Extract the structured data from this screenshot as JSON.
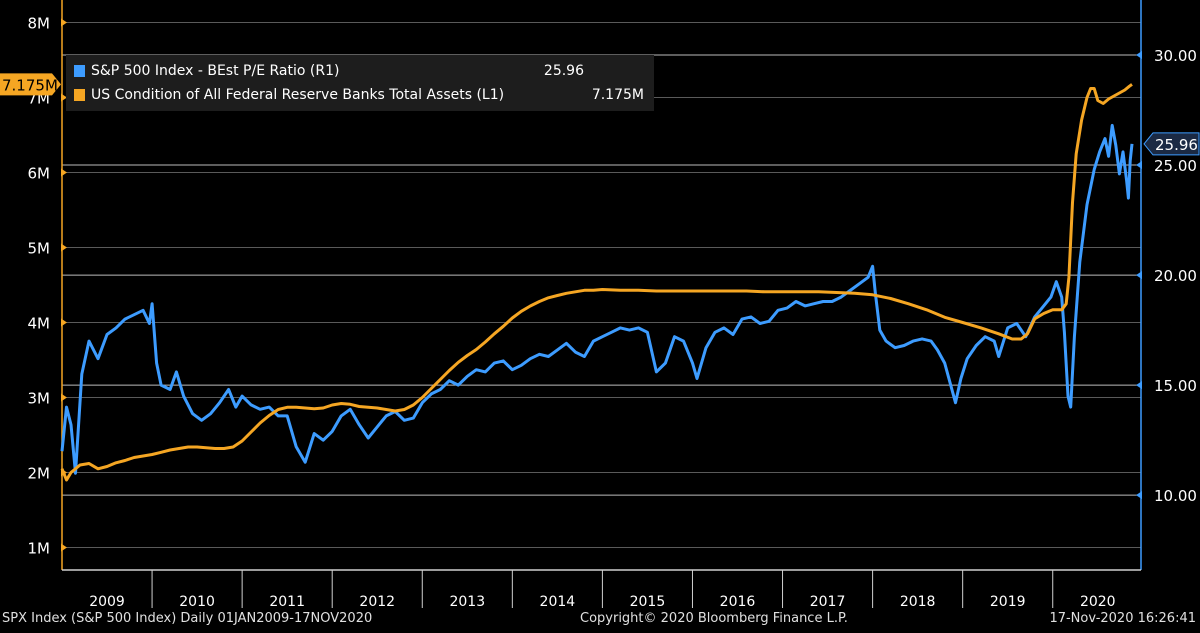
{
  "chart_data": {
    "type": "line",
    "title": "",
    "x_categories": [
      "2009",
      "2010",
      "2011",
      "2012",
      "2013",
      "2014",
      "2015",
      "2016",
      "2017",
      "2018",
      "2019",
      "2020"
    ],
    "x_range": [
      "2009-01-01",
      "2020-11-17"
    ],
    "left_axis": {
      "ticks": [
        "1M",
        "2M",
        "3M",
        "4M",
        "5M",
        "6M",
        "7M",
        "8M"
      ],
      "tick_values": [
        1,
        2,
        3,
        4,
        5,
        6,
        7,
        8
      ],
      "range": [
        0.7,
        8.3
      ],
      "unit": "M"
    },
    "right_axis": {
      "ticks": [
        "10.00",
        "15.00",
        "20.00",
        "25.00",
        "30.00"
      ],
      "tick_values": [
        10,
        15,
        20,
        25,
        30
      ],
      "range": [
        6.6,
        32.5
      ]
    },
    "grid": true,
    "series": [
      {
        "name": "S&P 500 Index - BEst P/E Ratio (R1)",
        "axis": "right",
        "color": "#3d9cff",
        "last_value": "25.96",
        "points": [
          [
            2009.0,
            12.0
          ],
          [
            2009.05,
            14.0
          ],
          [
            2009.1,
            13.2
          ],
          [
            2009.15,
            11.0
          ],
          [
            2009.22,
            15.5
          ],
          [
            2009.3,
            17.0
          ],
          [
            2009.4,
            16.2
          ],
          [
            2009.5,
            17.3
          ],
          [
            2009.6,
            17.6
          ],
          [
            2009.7,
            18.0
          ],
          [
            2009.8,
            18.2
          ],
          [
            2009.9,
            18.4
          ],
          [
            2009.97,
            17.8
          ],
          [
            2010.0,
            18.7
          ],
          [
            2010.05,
            16.0
          ],
          [
            2010.1,
            15.0
          ],
          [
            2010.2,
            14.8
          ],
          [
            2010.27,
            15.6
          ],
          [
            2010.35,
            14.5
          ],
          [
            2010.45,
            13.7
          ],
          [
            2010.55,
            13.4
          ],
          [
            2010.65,
            13.7
          ],
          [
            2010.75,
            14.2
          ],
          [
            2010.85,
            14.8
          ],
          [
            2010.93,
            14.0
          ],
          [
            2011.0,
            14.5
          ],
          [
            2011.1,
            14.1
          ],
          [
            2011.2,
            13.9
          ],
          [
            2011.3,
            14.0
          ],
          [
            2011.4,
            13.6
          ],
          [
            2011.5,
            13.6
          ],
          [
            2011.6,
            12.2
          ],
          [
            2011.7,
            11.5
          ],
          [
            2011.8,
            12.8
          ],
          [
            2011.9,
            12.5
          ],
          [
            2012.0,
            12.9
          ],
          [
            2012.1,
            13.6
          ],
          [
            2012.2,
            13.9
          ],
          [
            2012.3,
            13.2
          ],
          [
            2012.4,
            12.6
          ],
          [
            2012.5,
            13.1
          ],
          [
            2012.6,
            13.6
          ],
          [
            2012.7,
            13.8
          ],
          [
            2012.8,
            13.4
          ],
          [
            2012.9,
            13.5
          ],
          [
            2013.0,
            14.2
          ],
          [
            2013.1,
            14.6
          ],
          [
            2013.2,
            14.8
          ],
          [
            2013.3,
            15.2
          ],
          [
            2013.4,
            15.0
          ],
          [
            2013.5,
            15.4
          ],
          [
            2013.6,
            15.7
          ],
          [
            2013.7,
            15.6
          ],
          [
            2013.8,
            16.0
          ],
          [
            2013.9,
            16.1
          ],
          [
            2014.0,
            15.7
          ],
          [
            2014.1,
            15.9
          ],
          [
            2014.2,
            16.2
          ],
          [
            2014.3,
            16.4
          ],
          [
            2014.4,
            16.3
          ],
          [
            2014.5,
            16.6
          ],
          [
            2014.6,
            16.9
          ],
          [
            2014.7,
            16.5
          ],
          [
            2014.8,
            16.3
          ],
          [
            2014.9,
            17.0
          ],
          [
            2015.0,
            17.2
          ],
          [
            2015.1,
            17.4
          ],
          [
            2015.2,
            17.6
          ],
          [
            2015.3,
            17.5
          ],
          [
            2015.4,
            17.6
          ],
          [
            2015.5,
            17.4
          ],
          [
            2015.6,
            15.6
          ],
          [
            2015.7,
            16.0
          ],
          [
            2015.8,
            17.2
          ],
          [
            2015.9,
            17.0
          ],
          [
            2016.0,
            16.0
          ],
          [
            2016.05,
            15.3
          ],
          [
            2016.15,
            16.7
          ],
          [
            2016.25,
            17.4
          ],
          [
            2016.35,
            17.6
          ],
          [
            2016.45,
            17.3
          ],
          [
            2016.55,
            18.0
          ],
          [
            2016.65,
            18.1
          ],
          [
            2016.75,
            17.8
          ],
          [
            2016.85,
            17.9
          ],
          [
            2016.95,
            18.4
          ],
          [
            2017.05,
            18.5
          ],
          [
            2017.15,
            18.8
          ],
          [
            2017.25,
            18.6
          ],
          [
            2017.35,
            18.7
          ],
          [
            2017.45,
            18.8
          ],
          [
            2017.55,
            18.8
          ],
          [
            2017.65,
            19.0
          ],
          [
            2017.75,
            19.3
          ],
          [
            2017.85,
            19.6
          ],
          [
            2017.95,
            19.9
          ],
          [
            2018.0,
            20.4
          ],
          [
            2018.03,
            19.2
          ],
          [
            2018.08,
            17.5
          ],
          [
            2018.15,
            17.0
          ],
          [
            2018.25,
            16.7
          ],
          [
            2018.35,
            16.8
          ],
          [
            2018.45,
            17.0
          ],
          [
            2018.55,
            17.1
          ],
          [
            2018.65,
            17.0
          ],
          [
            2018.72,
            16.6
          ],
          [
            2018.8,
            16.0
          ],
          [
            2018.88,
            14.8
          ],
          [
            2018.92,
            14.2
          ],
          [
            2018.98,
            15.3
          ],
          [
            2019.05,
            16.2
          ],
          [
            2019.15,
            16.8
          ],
          [
            2019.25,
            17.2
          ],
          [
            2019.35,
            17.0
          ],
          [
            2019.4,
            16.3
          ],
          [
            2019.5,
            17.6
          ],
          [
            2019.6,
            17.8
          ],
          [
            2019.7,
            17.2
          ],
          [
            2019.8,
            18.1
          ],
          [
            2019.9,
            18.6
          ],
          [
            2019.98,
            19.0
          ],
          [
            2020.04,
            19.7
          ],
          [
            2020.1,
            19.0
          ],
          [
            2020.13,
            17.4
          ],
          [
            2020.17,
            14.5
          ],
          [
            2020.2,
            14.0
          ],
          [
            2020.24,
            17.2
          ],
          [
            2020.3,
            20.6
          ],
          [
            2020.38,
            23.2
          ],
          [
            2020.46,
            24.8
          ],
          [
            2020.52,
            25.6
          ],
          [
            2020.58,
            26.2
          ],
          [
            2020.62,
            25.4
          ],
          [
            2020.66,
            26.8
          ],
          [
            2020.7,
            25.9
          ],
          [
            2020.74,
            24.6
          ],
          [
            2020.78,
            25.6
          ],
          [
            2020.82,
            24.3
          ],
          [
            2020.84,
            23.5
          ],
          [
            2020.86,
            25.2
          ],
          [
            2020.88,
            25.96
          ]
        ]
      },
      {
        "name": "US Condition of All Federal Reserve Banks Total Assets  (L1)",
        "axis": "left",
        "color": "#f5a623",
        "last_value": "7.175M",
        "points": [
          [
            2009.0,
            2.05
          ],
          [
            2009.05,
            1.9
          ],
          [
            2009.1,
            2.0
          ],
          [
            2009.2,
            2.1
          ],
          [
            2009.3,
            2.12
          ],
          [
            2009.4,
            2.05
          ],
          [
            2009.5,
            2.08
          ],
          [
            2009.6,
            2.13
          ],
          [
            2009.7,
            2.16
          ],
          [
            2009.8,
            2.2
          ],
          [
            2009.9,
            2.22
          ],
          [
            2010.0,
            2.24
          ],
          [
            2010.1,
            2.27
          ],
          [
            2010.2,
            2.3
          ],
          [
            2010.3,
            2.32
          ],
          [
            2010.4,
            2.34
          ],
          [
            2010.5,
            2.34
          ],
          [
            2010.6,
            2.33
          ],
          [
            2010.7,
            2.32
          ],
          [
            2010.8,
            2.32
          ],
          [
            2010.9,
            2.34
          ],
          [
            2011.0,
            2.42
          ],
          [
            2011.1,
            2.54
          ],
          [
            2011.2,
            2.66
          ],
          [
            2011.3,
            2.76
          ],
          [
            2011.4,
            2.84
          ],
          [
            2011.5,
            2.87
          ],
          [
            2011.6,
            2.87
          ],
          [
            2011.7,
            2.86
          ],
          [
            2011.8,
            2.85
          ],
          [
            2011.9,
            2.86
          ],
          [
            2012.0,
            2.9
          ],
          [
            2012.1,
            2.92
          ],
          [
            2012.2,
            2.91
          ],
          [
            2012.3,
            2.88
          ],
          [
            2012.4,
            2.87
          ],
          [
            2012.5,
            2.86
          ],
          [
            2012.6,
            2.84
          ],
          [
            2012.7,
            2.82
          ],
          [
            2012.8,
            2.84
          ],
          [
            2012.9,
            2.9
          ],
          [
            2013.0,
            3.0
          ],
          [
            2013.1,
            3.12
          ],
          [
            2013.2,
            3.24
          ],
          [
            2013.3,
            3.36
          ],
          [
            2013.4,
            3.47
          ],
          [
            2013.5,
            3.56
          ],
          [
            2013.6,
            3.64
          ],
          [
            2013.7,
            3.74
          ],
          [
            2013.8,
            3.85
          ],
          [
            2013.9,
            3.95
          ],
          [
            2014.0,
            4.06
          ],
          [
            2014.1,
            4.15
          ],
          [
            2014.2,
            4.22
          ],
          [
            2014.3,
            4.28
          ],
          [
            2014.4,
            4.33
          ],
          [
            2014.5,
            4.36
          ],
          [
            2014.6,
            4.39
          ],
          [
            2014.7,
            4.41
          ],
          [
            2014.8,
            4.43
          ],
          [
            2014.9,
            4.43
          ],
          [
            2015.0,
            4.44
          ],
          [
            2015.2,
            4.43
          ],
          [
            2015.4,
            4.43
          ],
          [
            2015.6,
            4.42
          ],
          [
            2015.8,
            4.42
          ],
          [
            2016.0,
            4.42
          ],
          [
            2016.2,
            4.42
          ],
          [
            2016.4,
            4.42
          ],
          [
            2016.6,
            4.42
          ],
          [
            2016.8,
            4.41
          ],
          [
            2017.0,
            4.41
          ],
          [
            2017.2,
            4.41
          ],
          [
            2017.4,
            4.41
          ],
          [
            2017.6,
            4.4
          ],
          [
            2017.8,
            4.39
          ],
          [
            2018.0,
            4.37
          ],
          [
            2018.2,
            4.32
          ],
          [
            2018.4,
            4.25
          ],
          [
            2018.6,
            4.17
          ],
          [
            2018.8,
            4.07
          ],
          [
            2019.0,
            4.0
          ],
          [
            2019.2,
            3.93
          ],
          [
            2019.4,
            3.85
          ],
          [
            2019.55,
            3.78
          ],
          [
            2019.65,
            3.78
          ],
          [
            2019.72,
            3.85
          ],
          [
            2019.8,
            4.05
          ],
          [
            2019.9,
            4.12
          ],
          [
            2020.0,
            4.17
          ],
          [
            2020.1,
            4.17
          ],
          [
            2020.15,
            4.25
          ],
          [
            2020.18,
            4.6
          ],
          [
            2020.22,
            5.6
          ],
          [
            2020.26,
            6.25
          ],
          [
            2020.32,
            6.7
          ],
          [
            2020.38,
            7.0
          ],
          [
            2020.42,
            7.12
          ],
          [
            2020.46,
            7.12
          ],
          [
            2020.5,
            6.96
          ],
          [
            2020.56,
            6.92
          ],
          [
            2020.62,
            6.98
          ],
          [
            2020.68,
            7.02
          ],
          [
            2020.74,
            7.06
          ],
          [
            2020.8,
            7.1
          ],
          [
            2020.85,
            7.15
          ],
          [
            2020.88,
            7.175
          ]
        ]
      }
    ]
  },
  "legend": {
    "items": [
      {
        "label": "S&P 500 Index - BEst P/E Ratio (R1)",
        "value": "25.96",
        "color": "#3d9cff"
      },
      {
        "label": "US Condition of All Federal Reserve Banks Total Assets  (L1)",
        "value": "7.175M",
        "color": "#f5a623"
      }
    ]
  },
  "footer": {
    "left": "SPX Index (S&P 500 Index)  Daily 01JAN2009-17NOV2020",
    "center": "Copyright© 2020 Bloomberg Finance L.P.",
    "right": "17-Nov-2020 16:26:41"
  },
  "colors": {
    "background": "#000000",
    "grid": "#8a8a8a",
    "left_axis": "#f5a623",
    "right_axis": "#3d9cff"
  }
}
